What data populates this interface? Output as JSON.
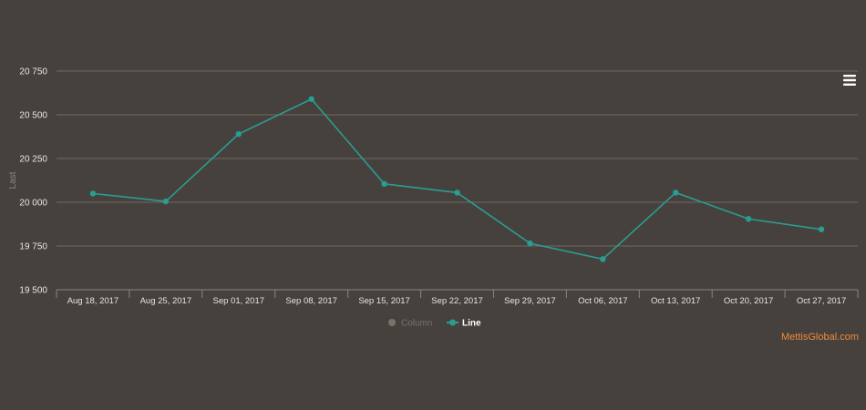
{
  "chart_data": {
    "type": "line",
    "title": "",
    "xlabel": "",
    "ylabel": "Last",
    "ylim": [
      19500,
      20750
    ],
    "yticks": [
      19500,
      19750,
      20000,
      20250,
      20500,
      20750
    ],
    "ytick_labels": [
      "19 500",
      "19 750",
      "20 000",
      "20 250",
      "20 500",
      "20 750"
    ],
    "categories": [
      "Aug 18, 2017",
      "Aug 25, 2017",
      "Sep 01, 2017",
      "Sep 08, 2017",
      "Sep 15, 2017",
      "Sep 22, 2017",
      "Sep 29, 2017",
      "Oct 06, 2017",
      "Oct 13, 2017",
      "Oct 20, 2017",
      "Oct 27, 2017"
    ],
    "series": [
      {
        "name": "Line",
        "visible": true,
        "values": [
          20050,
          20005,
          20390,
          20590,
          20105,
          20055,
          19765,
          19675,
          20055,
          19905,
          19845
        ]
      }
    ],
    "legend": [
      {
        "label": "Column",
        "state": "hidden"
      },
      {
        "label": "Line",
        "state": "visible"
      }
    ],
    "legend_position": "bottom-center",
    "grid": true
  },
  "colors": {
    "background": "#46413d",
    "series_line": "#2a9d92",
    "legend_hidden": "#77726c",
    "credit": "#ef8a3c"
  },
  "credit": "MettisGlobal.com",
  "menu": {
    "icon": "hamburger-menu-icon"
  }
}
